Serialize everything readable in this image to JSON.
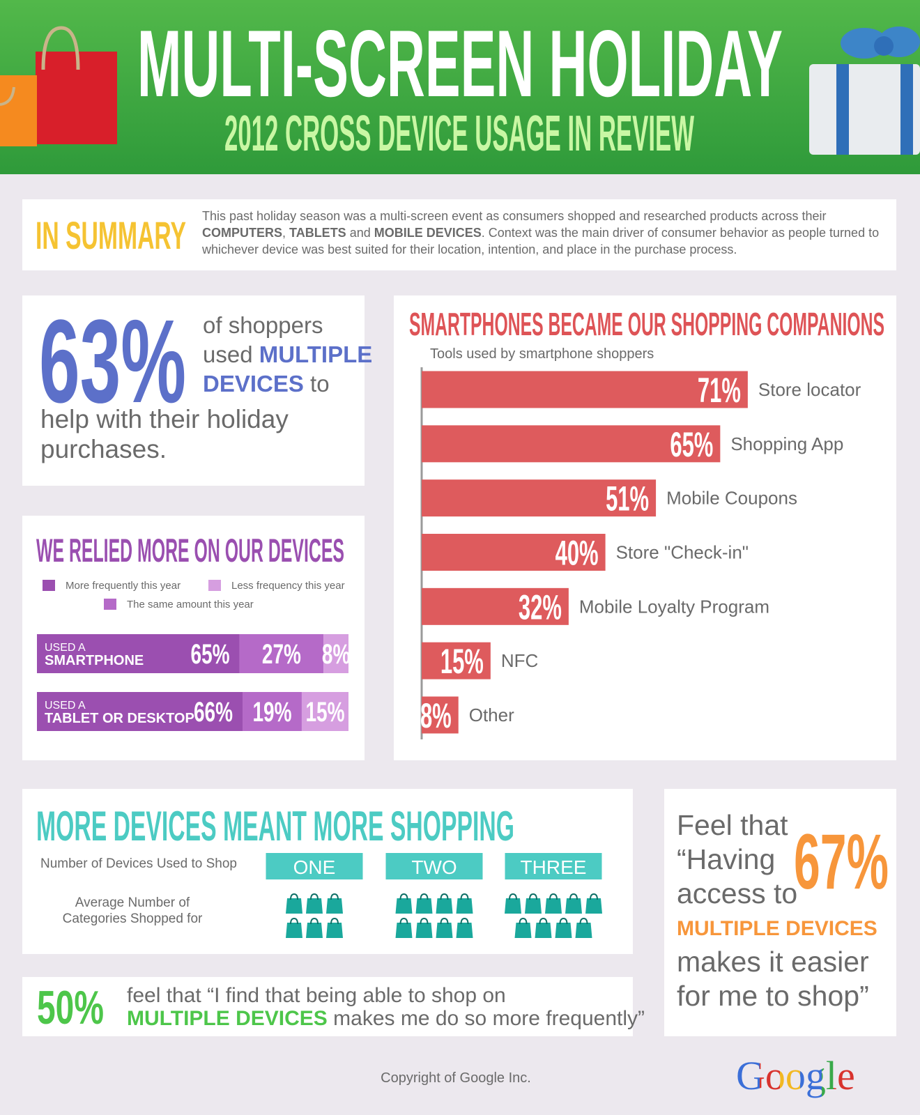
{
  "header": {
    "title": "MULTI-SCREEN HOLIDAY",
    "subtitle": "2012 CROSS DEVICE USAGE IN REVIEW"
  },
  "summary": {
    "heading": "IN SUMMARY",
    "text": [
      "This past holiday season was a multi-screen event as consumers shopped and researched products across their ",
      "COMPUTERS",
      ", ",
      "TABLETS",
      " and ",
      "MOBILE DEVICES",
      ". Context was the main driver of consumer behavior as people turned to whichever device was best suited for their location, intention, and place in the purchase process."
    ]
  },
  "multiple_devices_stat": {
    "value": "63%",
    "text": [
      "of shoppers",
      "used ",
      "MULTIPLE",
      "DEVICES",
      " to",
      "help with their holiday purchases."
    ]
  },
  "chart_data": [
    {
      "type": "bar",
      "title": "SMARTPHONES BECAME OUR SHOPPING COMPANIONS",
      "subtitle": "Tools used by smartphone shoppers",
      "categories": [
        "Store locator",
        "Shopping App",
        "Mobile Coupons",
        "Store \"Check-in\"",
        "Mobile Loyalty Program",
        "NFC",
        "Other"
      ],
      "values": [
        71,
        65,
        51,
        40,
        32,
        15,
        8
      ],
      "value_labels": [
        "71%",
        "65%",
        "51%",
        "40%",
        "32%",
        "15%",
        "8%"
      ],
      "color": "#de5b5d",
      "xlim": [
        0,
        100
      ]
    },
    {
      "type": "stacked_bar",
      "title": "WE RELIED MORE ON OUR DEVICES",
      "categories": [
        [
          "USED A",
          "SMARTPHONE"
        ],
        [
          "USED A",
          "TABLET OR DESKTOP"
        ]
      ],
      "series": [
        {
          "name": "More frequently this year",
          "color": "#9b4fb0",
          "values": [
            65,
            66
          ],
          "value_labels": [
            "65%",
            "66%"
          ]
        },
        {
          "name": "The same amount this year",
          "color": "#b56ac8",
          "values": [
            27,
            19
          ],
          "value_labels": [
            "27%",
            "19%"
          ]
        },
        {
          "name": "Less frequency this year",
          "color": "#d69ee0",
          "values": [
            8,
            15
          ],
          "value_labels": [
            "8%",
            "15%"
          ]
        }
      ],
      "xlim": [
        0,
        100
      ]
    },
    {
      "type": "pictogram",
      "title": "MORE DEVICES MEANT MORE SHOPPING",
      "x_label": "Number of Devices Used to Shop",
      "y_label": "Average Number of Categories Shopped for",
      "categories": [
        "ONE",
        "TWO",
        "THREE"
      ],
      "values": [
        6,
        8,
        9
      ],
      "color": "#1aa89c"
    }
  ],
  "frequency_stat": {
    "value": "50%",
    "text": [
      "feel that “I find that being able to shop on",
      "MULTIPLE DEVICES",
      " makes me do so more frequently”"
    ]
  },
  "ease_stat": {
    "value": "67%",
    "text": [
      "Feel that “Having access to",
      "MULTIPLE DEVICES",
      "makes it easier for me to shop”"
    ]
  },
  "footer": {
    "copyright": "Copyright of Google Inc.",
    "logo": "Google"
  }
}
